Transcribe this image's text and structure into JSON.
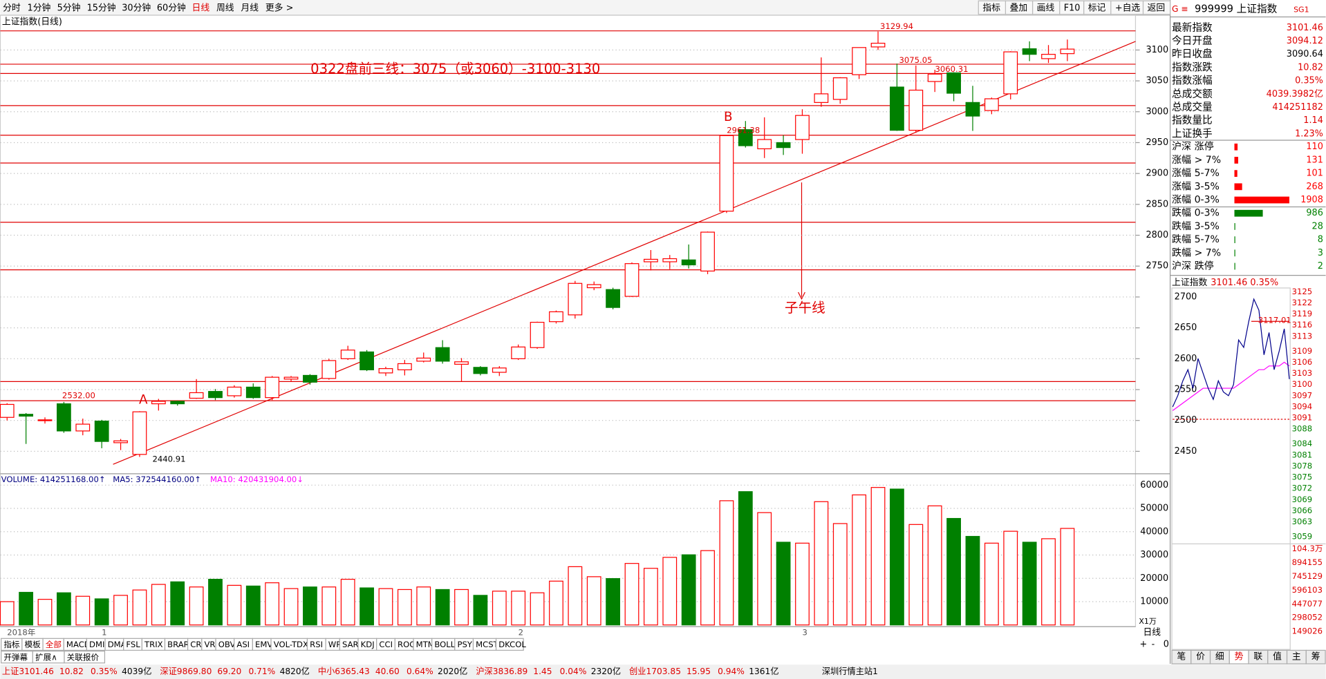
{
  "toolbar": {
    "periods": [
      "分时",
      "1分钟",
      "5分钟",
      "15分钟",
      "30分钟",
      "60分钟",
      "日线",
      "周线",
      "月线",
      "更多 >"
    ],
    "active_period": 6,
    "buttons": [
      "指标",
      "叠加",
      "画线",
      "F10",
      "标记",
      "+自选",
      "返回"
    ]
  },
  "chart_data": {
    "type": "candlestick",
    "title": "上证指数(日线)",
    "categories": [
      "2018年",
      null,
      null,
      null,
      null,
      "1",
      null,
      null,
      null,
      null,
      null,
      null,
      null,
      null,
      null,
      null,
      null,
      null,
      null,
      null,
      null,
      null,
      null,
      null,
      null,
      null,
      null,
      "2",
      null,
      null,
      null,
      null,
      null,
      null,
      null,
      null,
      null,
      null,
      null,
      null,
      null,
      null,
      "3",
      null,
      null,
      null,
      null,
      null,
      null,
      null,
      null,
      null,
      null,
      null,
      null,
      null,
      null
    ],
    "open": [
      2505,
      2510,
      2500,
      2527,
      2483,
      2499,
      2464,
      2445,
      2527,
      2531,
      2536,
      2547,
      2540,
      2554,
      2537,
      2567,
      2573,
      2568,
      2600,
      2611,
      2577,
      2582,
      2596,
      2618,
      2591,
      2586,
      2578,
      2600,
      2618,
      2660,
      2671,
      2715,
      2712,
      2701,
      2757,
      2757,
      2760,
      2742,
      2839,
      2971,
      2940,
      2950,
      2955,
      3015,
      3020,
      3060,
      3105,
      3040,
      2970,
      3049,
      3063,
      3015,
      3002,
      3029,
      3102,
      3086,
      3094.12
    ],
    "high": [
      2528,
      2512,
      2505,
      2530,
      2503,
      2501,
      2470,
      2515,
      2535,
      2532,
      2567,
      2551,
      2557,
      2560,
      2572,
      2572,
      2575,
      2600,
      2621,
      2614,
      2587,
      2598,
      2610,
      2630,
      2601,
      2588,
      2588,
      2623,
      2660,
      2678,
      2726,
      2725,
      2715,
      2756,
      2776,
      2768,
      2785,
      2806,
      2962,
      2985,
      2991,
      2962,
      3004,
      3088,
      3056,
      3104,
      3129.94,
      3078,
      3075,
      3068,
      3064,
      3042,
      3023,
      3098,
      3114,
      3108,
      3117
    ],
    "low": [
      2500,
      2462,
      2495,
      2480,
      2476,
      2455,
      2452,
      2440.91,
      2516,
      2524,
      2535,
      2533,
      2537,
      2535,
      2533,
      2563,
      2558,
      2566,
      2598,
      2580,
      2572,
      2573,
      2594,
      2592,
      2563,
      2573,
      2572,
      2598,
      2616,
      2657,
      2665,
      2711,
      2680,
      2700,
      2743,
      2745,
      2746,
      2737,
      2836,
      2942,
      2925,
      2930,
      2932,
      3008,
      3013,
      3053,
      3100,
      2969,
      2966,
      3032,
      3017,
      2969,
      2996,
      3020,
      3082,
      3079,
      3082
    ],
    "close": [
      2526,
      2507,
      2501,
      2483,
      2494,
      2466,
      2467,
      2514,
      2531,
      2527,
      2545,
      2537,
      2554,
      2537,
      2570,
      2570,
      2562,
      2597,
      2614,
      2582,
      2584,
      2592,
      2601,
      2596,
      2595,
      2576,
      2585,
      2619,
      2659,
      2676,
      2722,
      2720,
      2683,
      2754,
      2761,
      2762,
      2752,
      2805,
      2961.38,
      2945,
      2955,
      2942,
      2994,
      3029,
      3055,
      3104,
      3111,
      2970,
      3035,
      3061,
      3030,
      2993,
      3021,
      3097,
      3093,
      3093,
      3101.46
    ],
    "ylim": [
      2415,
      3155
    ],
    "yticks": [
      2450,
      2500,
      2550,
      2600,
      2650,
      2700,
      2750,
      2800,
      2850,
      2900,
      2950,
      3000,
      3050,
      3100
    ],
    "grid": true,
    "up_color": "#ff0000",
    "down_color": "#008000",
    "level_lines": [
      3131,
      3077,
      3062,
      3010,
      2962,
      2917,
      2821,
      2744,
      2563,
      2532
    ],
    "trendline": [
      [
        5.6,
        2429
      ],
      [
        59.6,
        3114
      ]
    ],
    "price_labels": [
      {
        "value": 3129.94
      },
      {
        "value": 3075.05
      },
      {
        "value": 3060.31
      },
      {
        "value": 2961.38
      },
      {
        "value": 2532,
        "label": "2532.00"
      },
      {
        "value": 2440.91
      }
    ],
    "note": "0322盘前三线：3075（或3060）-3100-3130",
    "markers": [
      "A",
      "B"
    ],
    "meridian": "子午线"
  },
  "volume": {
    "labels": [
      "VOLUME: 414251168.00↑",
      "MA5: 372544160.00↑",
      "MA10: 420431904.00↓"
    ],
    "unit": "X1万",
    "values": [
      10000,
      14000,
      11000,
      13800,
      12300,
      11200,
      12700,
      15000,
      17400,
      18500,
      16300,
      19600,
      17000,
      16700,
      18100,
      15600,
      16300,
      16300,
      19600,
      15900,
      15600,
      15200,
      16300,
      15200,
      15200,
      12700,
      14500,
      14500,
      13800,
      18800,
      25000,
      20700,
      19900,
      26400,
      24300,
      29000,
      30100,
      31900,
      53300,
      57200,
      48200,
      35500,
      35100,
      52900,
      43500,
      55800,
      59000,
      58300,
      43100,
      51100,
      45700,
      38000,
      35100,
      40200,
      35500,
      37000,
      41425
    ],
    "ylim": [
      0,
      64500
    ],
    "yticks": [
      10000,
      20000,
      30000,
      40000,
      50000,
      60000
    ]
  },
  "quote": {
    "header": "999999 上证指数",
    "tag": "SG1",
    "rows": [
      [
        "最新指数",
        "3101.46"
      ],
      [
        "今日开盘",
        "3094.12"
      ],
      [
        "昨日收盘",
        "3090.64"
      ],
      [
        "指数涨跌",
        "10.82"
      ],
      [
        "指数涨幅",
        "0.35%"
      ],
      [
        "总成交额",
        "4039.3982亿"
      ],
      [
        "总成交量",
        "414251182"
      ],
      [
        "指数量比",
        "1.14"
      ],
      [
        "上证换手",
        "1.23%"
      ]
    ],
    "breadth": [
      {
        "label": "沪深 涨停",
        "value": 110,
        "color": "#ff0000"
      },
      {
        "label": "涨幅 > 7%",
        "value": 131,
        "color": "#ff0000"
      },
      {
        "label": "涨幅 5-7%",
        "value": 101,
        "color": "#ff0000"
      },
      {
        "label": "涨幅 3-5%",
        "value": 268,
        "color": "#ff0000"
      },
      {
        "label": "涨幅 0-3%",
        "value": 1908,
        "color": "#ff0000"
      },
      {
        "label": "跌幅 0-3%",
        "value": 986,
        "color": "#008000"
      },
      {
        "label": "跌幅 3-5%",
        "value": 28,
        "color": "#008000"
      },
      {
        "label": "跌幅 5-7%",
        "value": 8,
        "color": "#008000"
      },
      {
        "label": "跌幅 > 7%",
        "value": 3,
        "color": "#008000"
      },
      {
        "label": "沪深 跌停",
        "value": 2,
        "color": "#008000"
      }
    ]
  },
  "intraday": {
    "title": "上证指数",
    "last": "3101.46 0.35%",
    "price": [
      3094,
      3097,
      3101,
      3104,
      3099,
      3107,
      3103,
      3099,
      3096,
      3101,
      3098,
      3097,
      3100,
      3112,
      3110,
      3117,
      3123,
      3120,
      3108,
      3114,
      3104,
      3109,
      3115,
      3101.46
    ],
    "avg": [
      3093,
      3094,
      3095,
      3096,
      3097,
      3098,
      3099,
      3099,
      3099,
      3099,
      3099,
      3099,
      3099,
      3100,
      3101,
      3102,
      3103,
      3104,
      3104,
      3105,
      3105,
      3105,
      3106,
      3105
    ],
    "prev_close": 3090.64,
    "high_label": 3117.01,
    "ylim": [
      3058,
      3126
    ],
    "yticks": [
      3125,
      3122,
      3119,
      3116,
      3113,
      3109,
      3106,
      3103,
      3100,
      3097,
      3094,
      3091,
      3088,
      3084,
      3081,
      3078,
      3075,
      3072,
      3069,
      3066,
      3063,
      3059
    ],
    "vol_ticks": [
      {
        "value": 1043000,
        "label": "104.3万"
      },
      894155,
      745129,
      596103,
      447077,
      298052,
      149026
    ]
  },
  "bottom": {
    "tabs": [
      "指标",
      "模板",
      "全部",
      "MACD",
      "DMI",
      "DMA",
      "FSL",
      "TRIX",
      "BRAR",
      "CR",
      "VR",
      "OBV",
      "ASI",
      "EMV",
      "VOL-TDX",
      "RSI",
      "WR",
      "SAR",
      "KDJ",
      "CCI",
      "ROC",
      "MTM",
      "BOLL",
      "PSY",
      "MCST",
      "DKCOL"
    ],
    "active_tab": 2,
    "row2": [
      "开弹幕",
      "扩展∧",
      "关联报价"
    ],
    "period": "日线",
    "zoom": [
      "+",
      "-",
      "0"
    ],
    "panel_tabs": [
      "笔",
      "价",
      "细",
      "势",
      "联",
      "值",
      "主",
      "筹"
    ],
    "active_panel_tab": 3
  },
  "status_bar": {
    "groups": [
      [
        "上证3101.46",
        "10.82",
        "0.35%",
        "4039亿"
      ],
      [
        "深证9869.80",
        "69.20",
        "0.71%",
        "4820亿"
      ],
      [
        "中小6365.43",
        "40.60",
        "0.64%",
        "2020亿"
      ],
      [
        "沪深3836.89",
        "1.45",
        "0.04%",
        "2320亿"
      ],
      [
        "创业1703.85",
        "15.95",
        "0.94%",
        "1361亿"
      ]
    ],
    "server": "深圳行情主站1"
  }
}
